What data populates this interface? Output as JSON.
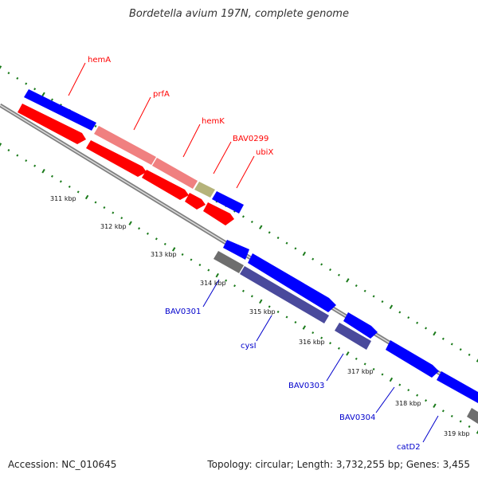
{
  "title": "Bordetella avium 197N, complete genome",
  "footer": {
    "accession": "Accession: NC_010645",
    "topology": "Topology: circular; Length: 3,732,255 bp; Genes: 3,455"
  },
  "colors": {
    "cds": "#0000ff",
    "rna": "#ff0000",
    "top_pink": "#f08080",
    "olive": "#b5b37a",
    "purple": "#4a4a9c",
    "gray": "#6e6e6e",
    "label_red": "#ff0000",
    "label_blue": "#0000cc",
    "backbone": "#808080",
    "dots": "#1a7a1a"
  },
  "gene_labels": [
    {
      "name": "hemA",
      "color": "label_red"
    },
    {
      "name": "prfA",
      "color": "label_red"
    },
    {
      "name": "hemK",
      "color": "label_red"
    },
    {
      "name": "BAV0299",
      "color": "label_red"
    },
    {
      "name": "ubiX",
      "color": "label_red"
    },
    {
      "name": "BAV0301",
      "color": "label_blue"
    },
    {
      "name": "cysI",
      "color": "label_blue"
    },
    {
      "name": "BAV0303",
      "color": "label_blue"
    },
    {
      "name": "BAV0304",
      "color": "label_blue"
    },
    {
      "name": "catD2",
      "color": "label_blue"
    }
  ],
  "kbp_labels": [
    "311 kbp",
    "312 kbp",
    "313 kbp",
    "314 kbp",
    "315 kbp",
    "316 kbp",
    "317 kbp",
    "318 kbp",
    "319 kbp"
  ]
}
